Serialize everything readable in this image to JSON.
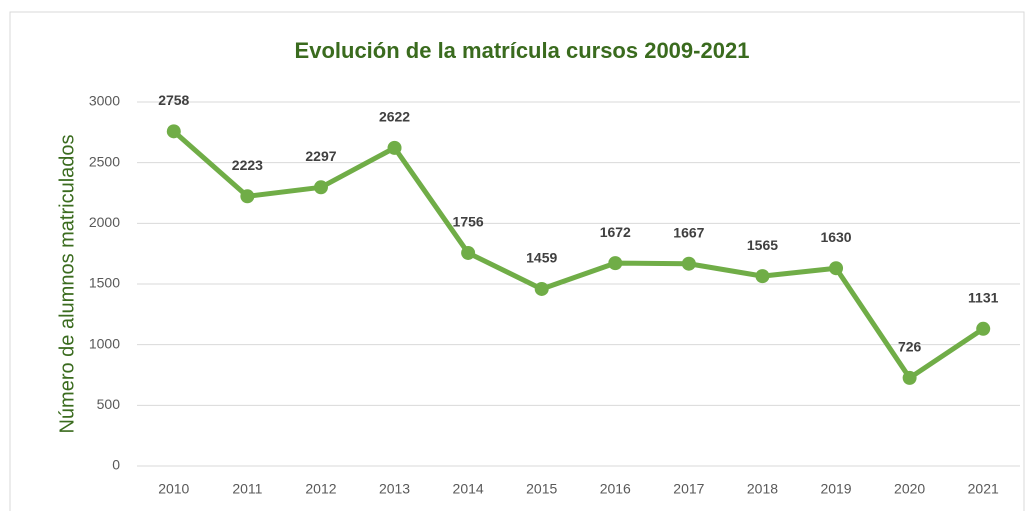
{
  "chart_data": {
    "type": "line",
    "title": "Evolución de la matrícula cursos 2009-2021",
    "y_label": "Número de alumnos matriculados",
    "categories": [
      "2010",
      "2011",
      "2012",
      "2013",
      "2014",
      "2015",
      "2016",
      "2017",
      "2018",
      "2019",
      "2020",
      "2021"
    ],
    "values": [
      2758,
      2223,
      2297,
      2622,
      1756,
      1459,
      1672,
      1667,
      1565,
      1630,
      726,
      1131
    ],
    "color": "#70ad47",
    "ylim": [
      0,
      3000
    ],
    "yticks": [
      0,
      500,
      1000,
      1500,
      2000,
      2500,
      3000
    ],
    "grid": true
  }
}
